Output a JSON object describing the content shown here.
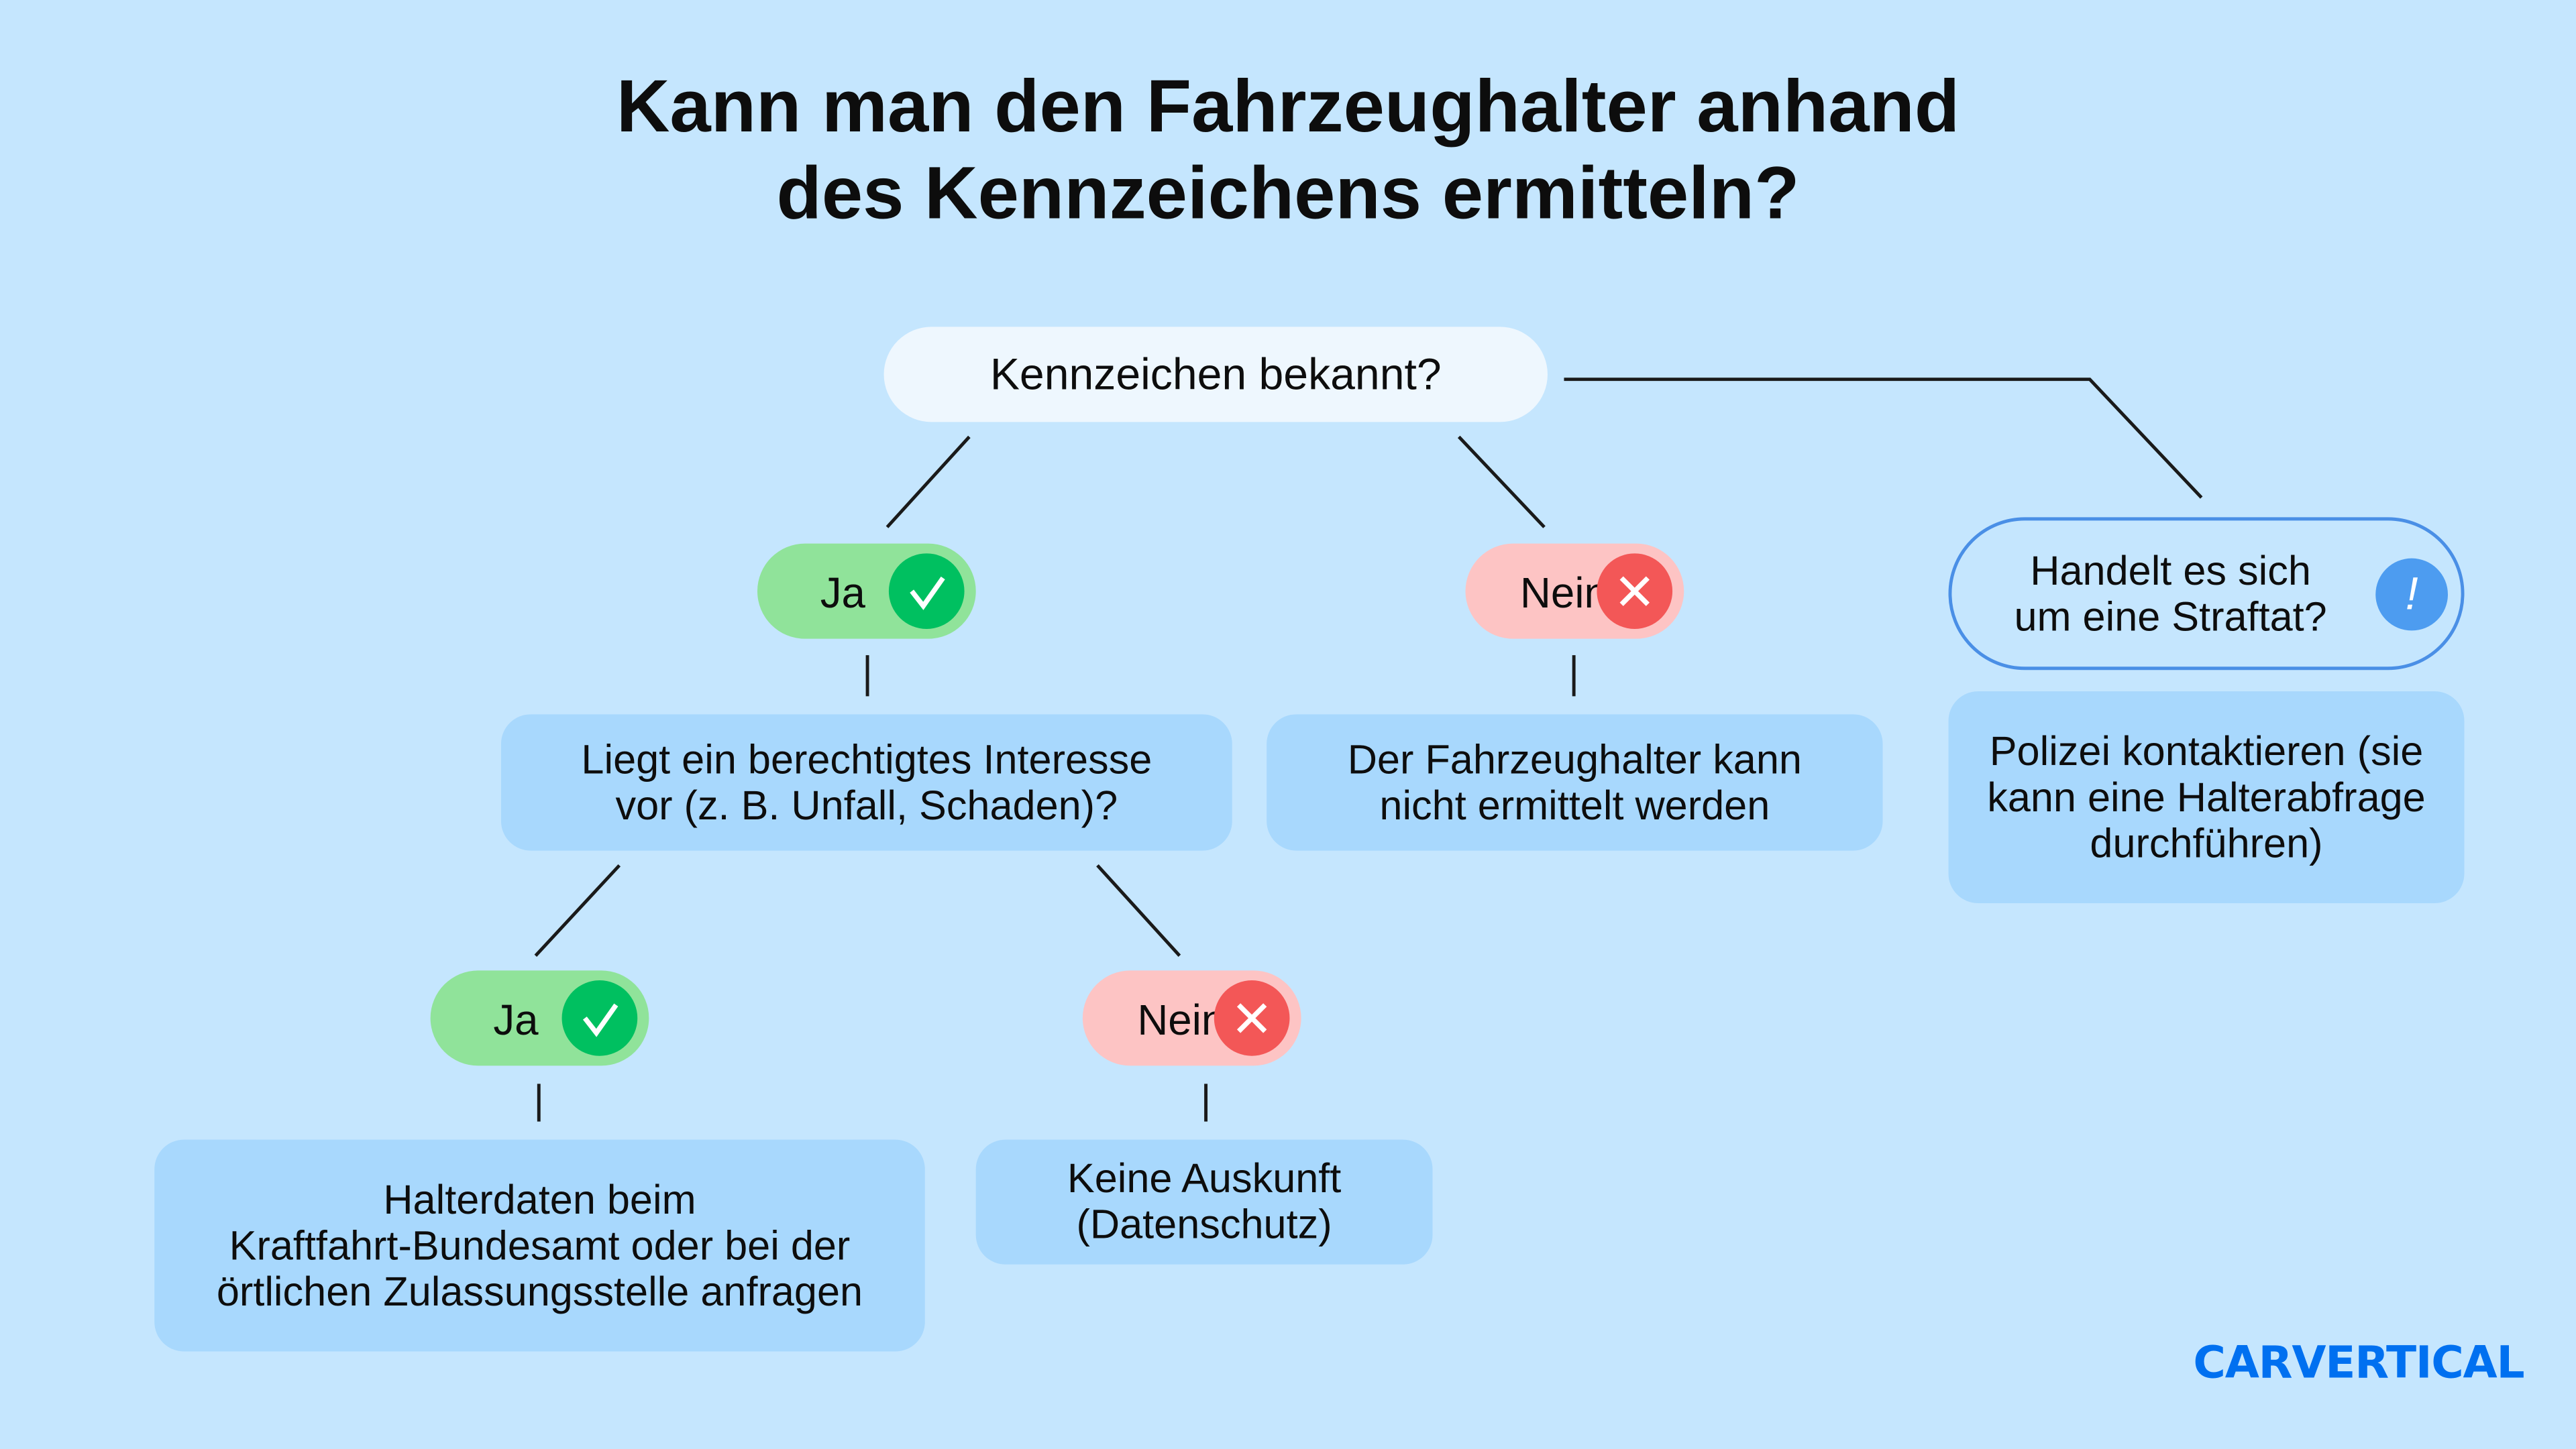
{
  "title": {
    "line1": "Kann man den Fahrzeughalter anhand",
    "line2": "des Kennzeichens ermitteln?"
  },
  "nodes": {
    "root": "Kennzeichen bekannt?",
    "ja1": "Ja",
    "nein1": "Nein",
    "straftat": {
      "line1": "Handelt es sich",
      "line2": "um eine Straftat?",
      "icon": "!"
    },
    "interesse": {
      "line1": "Liegt ein berechtigtes Interesse",
      "line2": "vor (z. B. Unfall, Schaden)?"
    },
    "nicht_ermittelt": {
      "line1": "Der Fahrzeughalter kann",
      "line2": "nicht ermittelt werden"
    },
    "polizei": {
      "line1": "Polizei kontaktieren (sie",
      "line2": "kann eine Halterabfrage",
      "line3": "durchführen)"
    },
    "ja2": "Ja",
    "nein2": "Nein",
    "halterdaten": {
      "line1": "Halterdaten beim",
      "line2": "Kraftfahrt-Bundesamt oder bei der",
      "line3": "örtlichen Zulassungsstelle anfragen"
    },
    "keine_auskunft": {
      "line1": "Keine Auskunft",
      "line2": "(Datenschutz)"
    }
  },
  "logo": "CARVERTICAL",
  "colors": {
    "background": "#c5e6fe",
    "box": "#a8d8fd",
    "yes": "#90e39a",
    "yes_icon": "#00c060",
    "no": "#fdc4c4",
    "no_icon": "#f35757",
    "info": "#4d9cf0",
    "brand": "#0070f0"
  }
}
